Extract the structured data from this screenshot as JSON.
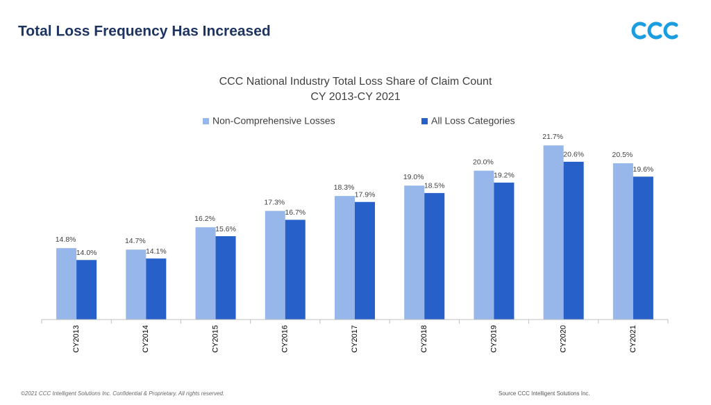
{
  "header": {
    "title": "Total Loss Frequency Has Increased"
  },
  "footer": "©2021 CCC Intelligent Solutions Inc. Confidential & Proprietary.  All rights reserved.",
  "source": "Source CCC Intelligent Solutions Inc.",
  "chart_data": {
    "type": "bar",
    "title": "CCC National Industry Total Loss Share of Claim Count",
    "subtitle": "CY 2013-CY 2021",
    "categories": [
      "CY2013",
      "CY2014",
      "CY2015",
      "CY2016",
      "CY2017",
      "CY2018",
      "CY2019",
      "CY2020",
      "CY2021"
    ],
    "series": [
      {
        "name": "Non-Comprehensive Losses",
        "color": "#97b7ea",
        "values": [
          14.8,
          14.7,
          16.2,
          17.3,
          18.3,
          19.0,
          20.0,
          21.7,
          20.5
        ],
        "value_labels": [
          "14.8%",
          "14.7%",
          "16.2%",
          "17.3%",
          "18.3%",
          "19.0%",
          "20.0%",
          "21.7%",
          "20.5%"
        ]
      },
      {
        "name": "All Loss Categories",
        "color": "#2660c8",
        "values": [
          14.0,
          14.1,
          15.6,
          16.7,
          17.9,
          18.5,
          19.2,
          20.6,
          19.6
        ],
        "value_labels": [
          "14.0%",
          "14.1%",
          "15.6%",
          "16.7%",
          "17.9%",
          "18.5%",
          "19.2%",
          "20.6%",
          "19.6%"
        ]
      }
    ],
    "ylim": [
      10,
      24
    ],
    "legend": "top"
  }
}
